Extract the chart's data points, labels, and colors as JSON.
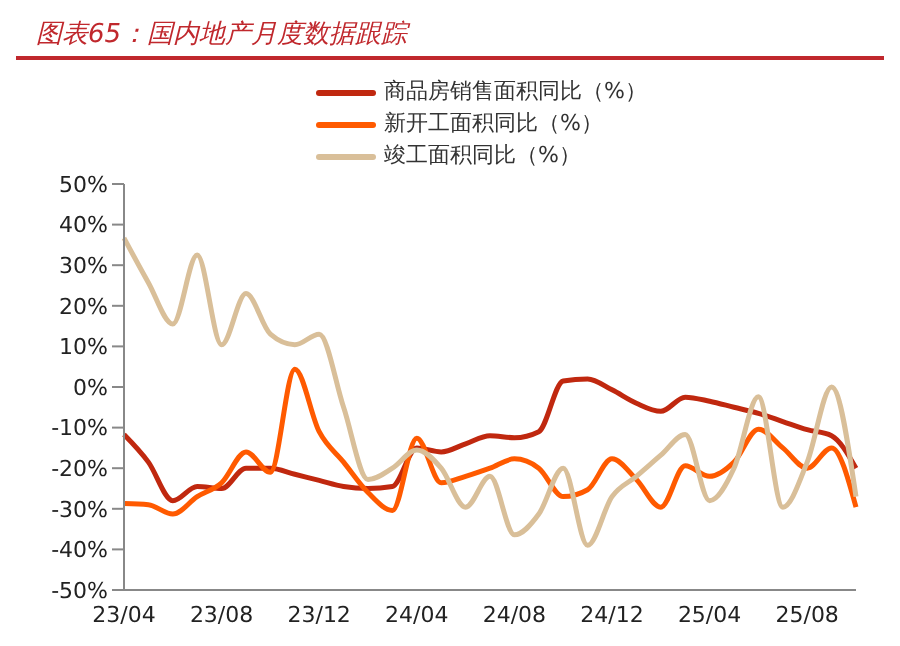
{
  "chart_data": {
    "type": "line",
    "title": "图表65：国内地产月度数据跟踪",
    "categories": [
      "23/04",
      null,
      null,
      null,
      "23/08",
      null,
      null,
      null,
      "23/12",
      null,
      null,
      null,
      "24/04",
      null,
      null,
      null,
      "24/08",
      null,
      null,
      null,
      "24/12",
      null,
      null,
      null,
      "25/04",
      null,
      null,
      null,
      "25/08",
      null,
      null
    ],
    "series": [
      {
        "name": "商品房销售面积同比（%）",
        "color": "#c0280f",
        "values": [
          -11.7,
          -18.5,
          -28,
          -24.5,
          -25,
          -20,
          -20,
          -21.5,
          -23,
          -24.5,
          -25,
          -24.5,
          -15,
          -16,
          -14,
          -12,
          -12.5,
          -11,
          1.5,
          2,
          -0.7,
          -4,
          -6,
          -2.5,
          -3.5,
          -5,
          -6.5,
          -8.5,
          -10.5,
          -12,
          -20
        ]
      },
      {
        "name": "新开工面积同比（%）",
        "color": "#ff5a00",
        "values": [
          -28.7,
          -29,
          -31.3,
          -27,
          -23.6,
          -16,
          -21,
          4.4,
          -11,
          -18.5,
          -26,
          -30.4,
          -12.6,
          -23.6,
          -22,
          -20,
          -17.7,
          -20,
          -27,
          -25.3,
          -17.7,
          -22.8,
          -29.6,
          -19.4,
          -22,
          -18.5,
          -10.4,
          -15,
          -20,
          -15,
          -29.6
        ]
      },
      {
        "name": "竣工面积同比（%）",
        "color": "#d9bf99",
        "values": [
          36.7,
          25.7,
          15.5,
          32.5,
          10.4,
          23,
          13,
          10.4,
          13,
          -5,
          -22.8,
          -20,
          -15.5,
          -20,
          -29.6,
          -22,
          -36.4,
          -31.3,
          -20,
          -39,
          -27,
          -22,
          -16.8,
          -11.7,
          -28,
          -20,
          -2.4,
          -29.6,
          -18.5,
          0,
          -27
        ]
      }
    ],
    "ylim": [
      -50,
      50
    ],
    "yticks": [
      {
        "value": 50,
        "label": "50%"
      },
      {
        "value": 40,
        "label": "40%"
      },
      {
        "value": 30,
        "label": "30%"
      },
      {
        "value": 20,
        "label": "20%"
      },
      {
        "value": 10,
        "label": "10%"
      },
      {
        "value": 0,
        "label": "0%"
      },
      {
        "value": -10,
        "label": "-10%"
      },
      {
        "value": -20,
        "label": "-20%"
      },
      {
        "value": -30,
        "label": "-30%"
      },
      {
        "value": -40,
        "label": "-40%"
      },
      {
        "value": -50,
        "label": "-50%"
      }
    ],
    "grid": false,
    "legend": "top",
    "marker": "none",
    "line_style": "solid"
  }
}
